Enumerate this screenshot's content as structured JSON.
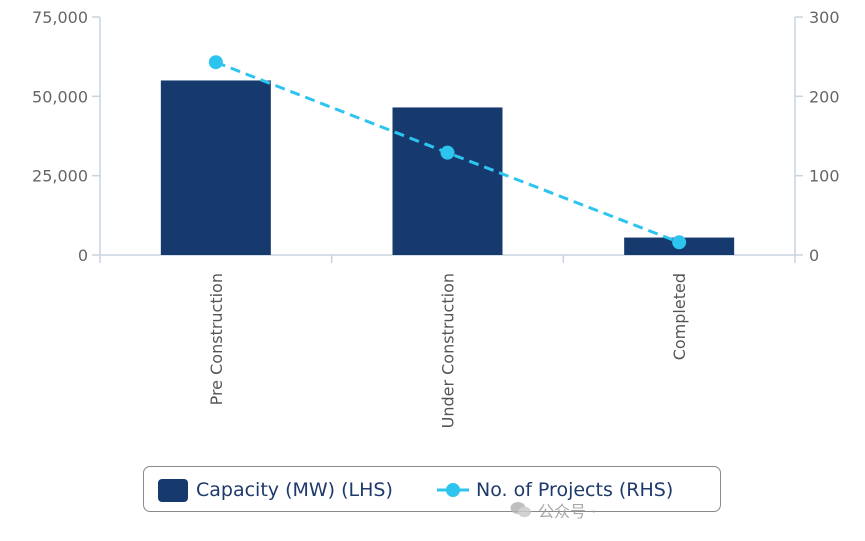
{
  "chart_data": {
    "type": "bar",
    "title": "",
    "categories": [
      "Pre Construction",
      "Under Construction",
      "Completed"
    ],
    "series": [
      {
        "name": "Capacity (MW) (LHS)",
        "type": "bar",
        "axis": "left",
        "values": [
          55000,
          46500,
          5500
        ],
        "color": "#163a6e"
      },
      {
        "name": "No. of Projects (RHS)",
        "type": "line",
        "axis": "right",
        "line_style": "dashed",
        "values": [
          243,
          129,
          16
        ],
        "color": "#2ec4f0"
      }
    ],
    "y_left": {
      "ylim": [
        0,
        75000
      ],
      "ticks": [
        "0",
        "25,000",
        "50,000",
        "75,000"
      ]
    },
    "y_right": {
      "ylim": [
        0,
        300
      ],
      "ticks": [
        "0",
        "100",
        "200",
        "300"
      ]
    },
    "grid": false,
    "legend_position": "bottom"
  },
  "watermark": {
    "text": "公众号 ·"
  }
}
